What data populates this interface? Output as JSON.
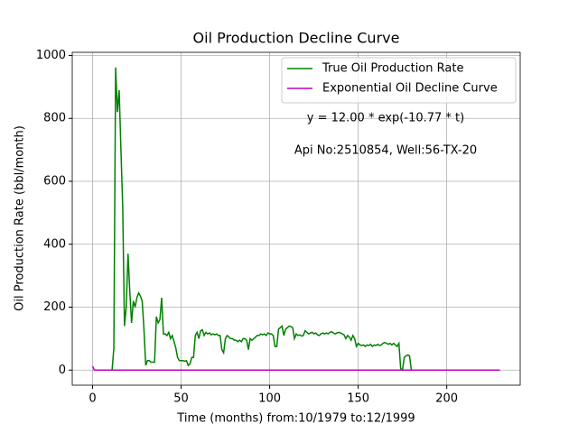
{
  "chart_data": {
    "type": "line",
    "title": "Oil Production Decline Curve",
    "xlabel": "Time (months) from:10/1979 to:12/1999",
    "ylabel": "Oil Production Rate (bbl/month)",
    "annotations": [
      "y = 12.00 * exp(-10.77 * t)",
      "Api No:2510854, Well:56-TX-20"
    ],
    "xlim": [
      -11.5,
      241.5
    ],
    "xticks": [
      0,
      50,
      100,
      150,
      200
    ],
    "ylim": [
      -48,
      1010
    ],
    "yticks": [
      0,
      200,
      400,
      600,
      800,
      1000
    ],
    "grid": true,
    "legend": "upper right",
    "series": [
      {
        "name": "True Oil Production Rate",
        "color": "#008000",
        "x": [
          11,
          12,
          13,
          14,
          15,
          16,
          17,
          18,
          19,
          20,
          21,
          22,
          23,
          24,
          25,
          26,
          27,
          28,
          29,
          30,
          31,
          32,
          33,
          34,
          35,
          36,
          37,
          38,
          39,
          40,
          41,
          42,
          43,
          44,
          45,
          46,
          47,
          48,
          49,
          50,
          51,
          52,
          53,
          54,
          55,
          56,
          57,
          58,
          59,
          60,
          61,
          62,
          63,
          64,
          65,
          66,
          67,
          68,
          69,
          70,
          71,
          72,
          73,
          74,
          75,
          76,
          77,
          78,
          79,
          80,
          81,
          82,
          83,
          84,
          85,
          86,
          87,
          88,
          89,
          90,
          91,
          92,
          93,
          94,
          95,
          96,
          97,
          98,
          99,
          100,
          101,
          102,
          103,
          104,
          105,
          106,
          107,
          108,
          109,
          110,
          111,
          112,
          113,
          114,
          115,
          116,
          117,
          118,
          119,
          120,
          121,
          122,
          123,
          124,
          125,
          126,
          127,
          128,
          129,
          130,
          131,
          132,
          133,
          134,
          135,
          136,
          137,
          138,
          139,
          140,
          141,
          142,
          143,
          144,
          145,
          146,
          147,
          148,
          149,
          150,
          151,
          152,
          153,
          154,
          155,
          156,
          157,
          158,
          159,
          160,
          161,
          162,
          163,
          164,
          165,
          166,
          167,
          168,
          169,
          170,
          171,
          172,
          173,
          174,
          175,
          176,
          177,
          178,
          179,
          180,
          181,
          182,
          183,
          184
        ],
        "values": [
          0,
          70,
          962,
          820,
          890,
          700,
          520,
          140,
          200,
          370,
          250,
          150,
          220,
          200,
          230,
          245,
          235,
          220,
          130,
          15,
          30,
          30,
          25,
          25,
          25,
          170,
          150,
          160,
          230,
          115,
          115,
          110,
          120,
          100,
          110,
          90,
          70,
          40,
          30,
          30,
          30,
          28,
          30,
          15,
          20,
          40,
          40,
          110,
          120,
          100,
          125,
          128,
          110,
          120,
          115,
          118,
          112,
          115,
          112,
          115,
          110,
          110,
          65,
          55,
          100,
          110,
          105,
          100,
          100,
          95,
          95,
          90,
          95,
          90,
          100,
          100,
          95,
          65,
          100,
          95,
          100,
          105,
          110,
          110,
          115,
          112,
          115,
          110,
          118,
          115,
          115,
          110,
          75,
          75,
          130,
          135,
          140,
          110,
          130,
          135,
          140,
          138,
          135,
          100,
          115,
          110,
          112,
          108,
          110,
          125,
          120,
          115,
          118,
          120,
          115,
          118,
          112,
          110,
          115,
          118,
          115,
          118,
          115,
          120,
          122,
          118,
          115,
          118,
          120,
          118,
          115,
          112,
          100,
          110,
          105,
          95,
          110,
          100,
          75,
          85,
          80,
          78,
          80,
          75,
          80,
          78,
          82,
          75,
          80,
          78,
          82,
          78,
          80,
          85,
          88,
          85,
          82,
          85,
          80,
          85,
          80,
          75,
          85,
          5,
          0,
          40,
          45,
          48,
          45,
          0,
          0,
          0,
          0,
          0
        ]
      },
      {
        "name": "Exponential Oil Decline Curve",
        "color": "#bf00bf",
        "x": [
          0,
          1,
          230
        ],
        "values": [
          12,
          0,
          0
        ]
      }
    ]
  }
}
